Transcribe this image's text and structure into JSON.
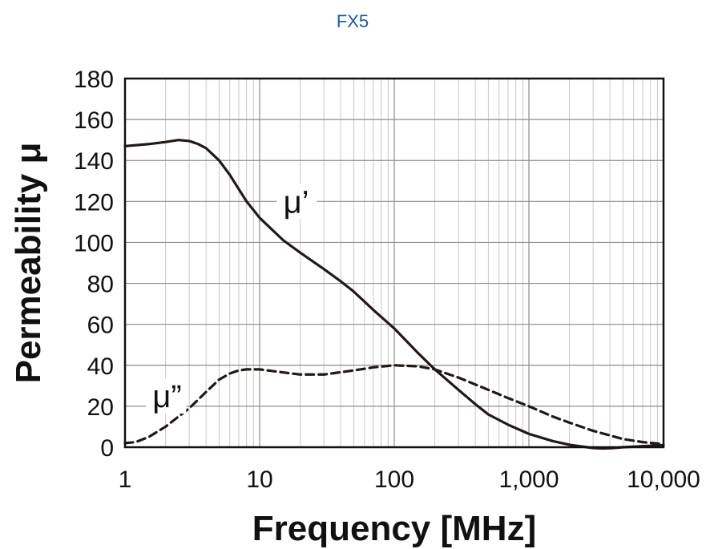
{
  "chart_data": {
    "type": "line",
    "title": "FX5",
    "xlabel": "Frequency [MHz]",
    "ylabel": "Permeability μ",
    "x_scale": "log",
    "xlim": [
      1,
      10000
    ],
    "ylim": [
      0,
      180
    ],
    "x_ticks": [
      1,
      10,
      100,
      1000,
      10000
    ],
    "x_tick_labels": [
      "1",
      "10",
      "100",
      "1,000",
      "10,000"
    ],
    "y_ticks": [
      0,
      20,
      40,
      60,
      80,
      100,
      120,
      140,
      160,
      180
    ],
    "y_tick_labels": [
      "0",
      "20",
      "40",
      "60",
      "80",
      "100",
      "120",
      "140",
      "160",
      "180"
    ],
    "grid": true,
    "series": [
      {
        "name": "μ’",
        "style": "solid",
        "color": "#231815",
        "x": [
          1,
          1.5,
          2,
          2.5,
          3,
          3.5,
          4,
          5,
          6,
          7,
          8,
          10,
          15,
          20,
          30,
          40,
          50,
          70,
          100,
          150,
          200,
          300,
          400,
          500,
          700,
          1000,
          1500,
          2000,
          2500,
          3000,
          3500,
          4000,
          5000,
          7000,
          10000
        ],
        "y": [
          147,
          148,
          149,
          150,
          149.5,
          148,
          146,
          140,
          133,
          126,
          120,
          112,
          101,
          95,
          87,
          81,
          76,
          67,
          58,
          46,
          38,
          28,
          21,
          16,
          11,
          6.5,
          3,
          1.2,
          0.3,
          -0.4,
          -0.6,
          -0.5,
          0,
          0.5,
          1
        ]
      },
      {
        "name": "μ”",
        "style": "dashed",
        "color": "#231815",
        "x": [
          1,
          1.2,
          1.5,
          2,
          2.5,
          3,
          4,
          5,
          6,
          7,
          8,
          10,
          15,
          20,
          30,
          50,
          70,
          100,
          150,
          200,
          300,
          500,
          700,
          1000,
          1500,
          2000,
          3000,
          5000,
          7000,
          10000
        ],
        "y": [
          2,
          2.5,
          5,
          10,
          15,
          19,
          27,
          33,
          36,
          37.5,
          38,
          38,
          36.5,
          35.5,
          35.5,
          37.5,
          39,
          40,
          39.5,
          38,
          34,
          28,
          24,
          20,
          15,
          12,
          8,
          4,
          2.5,
          1.5
        ]
      }
    ],
    "annotations": [
      {
        "text": "μ’",
        "x": 15,
        "y": 120
      },
      {
        "text": "μ”",
        "x": 1.6,
        "y": 25
      }
    ]
  }
}
